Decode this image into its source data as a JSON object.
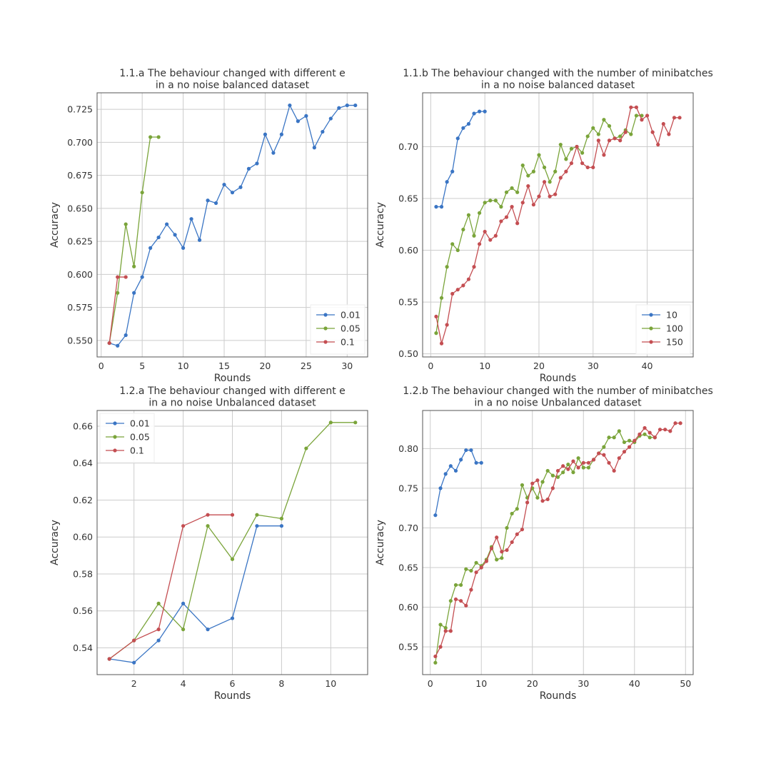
{
  "chart_data": [
    {
      "type": "line",
      "title": "1.1.a The behaviour changed with different e\nin a no noise balanced dataset",
      "xlabel": "Rounds",
      "ylabel": "Accuracy",
      "xlim": [
        -0.5,
        32.5
      ],
      "ylim": [
        0.5375,
        0.7375
      ],
      "xticks": [
        0,
        5,
        10,
        15,
        20,
        25,
        30
      ],
      "yticks": [
        0.55,
        0.575,
        0.6,
        0.625,
        0.65,
        0.675,
        0.7,
        0.725
      ],
      "ytick_labels": [
        "0.550",
        "0.575",
        "0.600",
        "0.625",
        "0.650",
        "0.675",
        "0.700",
        "0.725"
      ],
      "grid": true,
      "legend_position": "lower-right",
      "series": [
        {
          "name": "0.01",
          "color": "#3a75c4",
          "x": [
            1,
            2,
            3,
            4,
            5,
            6,
            7,
            8,
            9,
            10,
            11,
            12,
            13,
            14,
            15,
            16,
            17,
            18,
            19,
            20,
            21,
            22,
            23,
            24,
            25,
            26,
            27,
            28,
            29,
            30,
            31
          ],
          "y": [
            0.548,
            0.546,
            0.554,
            0.586,
            0.598,
            0.62,
            0.628,
            0.638,
            0.63,
            0.62,
            0.642,
            0.626,
            0.656,
            0.654,
            0.668,
            0.662,
            0.666,
            0.68,
            0.684,
            0.706,
            0.692,
            0.706,
            0.728,
            0.716,
            0.72,
            0.696,
            0.708,
            0.718,
            0.726,
            0.728,
            0.728
          ]
        },
        {
          "name": "0.05",
          "color": "#7aa43a",
          "x": [
            1,
            2,
            3,
            4,
            5,
            6,
            7
          ],
          "y": [
            0.548,
            0.586,
            0.638,
            0.606,
            0.662,
            0.704,
            0.704
          ]
        },
        {
          "name": "0.1",
          "color": "#c44e52",
          "x": [
            1,
            2,
            3
          ],
          "y": [
            0.548,
            0.598,
            0.598
          ]
        }
      ]
    },
    {
      "type": "line",
      "title": "1.1.b The behaviour changed with the number of minibatches\nin a no noise balanced dataset",
      "xlabel": "Rounds",
      "ylabel": "Accuracy",
      "xlim": [
        -1.5,
        48.5
      ],
      "ylim": [
        0.497,
        0.752
      ],
      "xticks": [
        0,
        10,
        20,
        30,
        40
      ],
      "yticks": [
        0.5,
        0.55,
        0.6,
        0.65,
        0.7
      ],
      "ytick_labels": [
        "0.50",
        "0.55",
        "0.60",
        "0.65",
        "0.70"
      ],
      "grid": true,
      "legend_position": "lower-right",
      "series": [
        {
          "name": "10",
          "color": "#3a75c4",
          "x": [
            1,
            2,
            3,
            4,
            5,
            6,
            7,
            8,
            9,
            10
          ],
          "y": [
            0.642,
            0.642,
            0.666,
            0.676,
            0.708,
            0.718,
            0.722,
            0.732,
            0.734,
            0.734
          ]
        },
        {
          "name": "100",
          "color": "#7aa43a",
          "x": [
            1,
            2,
            3,
            4,
            5,
            6,
            7,
            8,
            9,
            10,
            11,
            12,
            13,
            14,
            15,
            16,
            17,
            18,
            19,
            20,
            21,
            22,
            23,
            24,
            25,
            26,
            27,
            28,
            29,
            30,
            31,
            32,
            33,
            34,
            35,
            36,
            37,
            38,
            39
          ],
          "y": [
            0.52,
            0.554,
            0.584,
            0.606,
            0.6,
            0.62,
            0.634,
            0.614,
            0.636,
            0.646,
            0.648,
            0.648,
            0.642,
            0.656,
            0.66,
            0.656,
            0.682,
            0.672,
            0.676,
            0.692,
            0.68,
            0.666,
            0.676,
            0.702,
            0.688,
            0.698,
            0.7,
            0.694,
            0.71,
            0.718,
            0.712,
            0.726,
            0.72,
            0.708,
            0.71,
            0.716,
            0.712,
            0.73,
            0.73
          ]
        },
        {
          "name": "150",
          "color": "#c44e52",
          "x": [
            1,
            2,
            3,
            4,
            5,
            6,
            7,
            8,
            9,
            10,
            11,
            12,
            13,
            14,
            15,
            16,
            17,
            18,
            19,
            20,
            21,
            22,
            23,
            24,
            25,
            26,
            27,
            28,
            29,
            30,
            31,
            32,
            33,
            34,
            35,
            36,
            37,
            38,
            39,
            40,
            41,
            42,
            43,
            44,
            45,
            46
          ],
          "y": [
            0.536,
            0.51,
            0.528,
            0.558,
            0.562,
            0.566,
            0.572,
            0.584,
            0.606,
            0.618,
            0.61,
            0.614,
            0.628,
            0.632,
            0.642,
            0.626,
            0.646,
            0.662,
            0.644,
            0.652,
            0.666,
            0.652,
            0.654,
            0.67,
            0.676,
            0.684,
            0.7,
            0.684,
            0.68,
            0.68,
            0.706,
            0.692,
            0.706,
            0.708,
            0.706,
            0.714,
            0.738,
            0.738,
            0.726,
            0.73,
            0.714,
            0.702,
            0.722,
            0.712,
            0.728,
            0.728
          ]
        }
      ]
    },
    {
      "type": "line",
      "title": "1.2.a The behaviour changed with different e\nin a no noise Unbalanced dataset",
      "xlabel": "Rounds",
      "ylabel": "Accuracy",
      "xlim": [
        0.5,
        11.5
      ],
      "ylim": [
        0.5255,
        0.6685
      ],
      "xticks": [
        2,
        4,
        6,
        8,
        10
      ],
      "yticks": [
        0.54,
        0.56,
        0.58,
        0.6,
        0.62,
        0.64,
        0.66
      ],
      "ytick_labels": [
        "0.54",
        "0.56",
        "0.58",
        "0.60",
        "0.62",
        "0.64",
        "0.66"
      ],
      "grid": true,
      "legend_position": "upper-left",
      "series": [
        {
          "name": "0.01",
          "color": "#3a75c4",
          "x": [
            1,
            2,
            3,
            4,
            5,
            6,
            7,
            8
          ],
          "y": [
            0.534,
            0.532,
            0.544,
            0.564,
            0.55,
            0.556,
            0.606,
            0.606
          ]
        },
        {
          "name": "0.05",
          "color": "#7aa43a",
          "x": [
            1,
            2,
            3,
            4,
            5,
            6,
            7,
            8,
            9,
            10,
            11
          ],
          "y": [
            0.534,
            0.544,
            0.564,
            0.55,
            0.606,
            0.588,
            0.612,
            0.61,
            0.648,
            0.662,
            0.662
          ]
        },
        {
          "name": "0.1",
          "color": "#c44e52",
          "x": [
            1,
            2,
            3,
            4,
            5,
            6
          ],
          "y": [
            0.534,
            0.544,
            0.55,
            0.606,
            0.612,
            0.612
          ]
        }
      ]
    },
    {
      "type": "line",
      "title": "1.2.b The behaviour changed with the number of minibatches\nin a no noise Unbalanced dataset",
      "xlabel": "Rounds",
      "ylabel": "Accuracy",
      "xlim": [
        -1.5,
        51.5
      ],
      "ylim": [
        0.515,
        0.848
      ],
      "xticks": [
        0,
        10,
        20,
        30,
        40,
        50
      ],
      "yticks": [
        0.55,
        0.6,
        0.65,
        0.7,
        0.75,
        0.8
      ],
      "ytick_labels": [
        "0.55",
        "0.60",
        "0.65",
        "0.70",
        "0.75",
        "0.80"
      ],
      "grid": true,
      "legend_position": "none",
      "series": [
        {
          "name": "",
          "color": "#3a75c4",
          "x": [
            1,
            2,
            3,
            4,
            5,
            6,
            7,
            8,
            9,
            10
          ],
          "y": [
            0.716,
            0.75,
            0.768,
            0.778,
            0.772,
            0.786,
            0.798,
            0.798,
            0.782,
            0.782
          ]
        },
        {
          "name": "",
          "color": "#7aa43a",
          "x": [
            1,
            2,
            3,
            4,
            5,
            6,
            7,
            8,
            9,
            10,
            11,
            12,
            13,
            14,
            15,
            16,
            17,
            18,
            19,
            20,
            21,
            22,
            23,
            24,
            25,
            26,
            27,
            28,
            29,
            30,
            31,
            32,
            33,
            34,
            35,
            36,
            37,
            38,
            39,
            40,
            41,
            42,
            43,
            44
          ],
          "y": [
            0.53,
            0.578,
            0.574,
            0.608,
            0.628,
            0.628,
            0.648,
            0.646,
            0.656,
            0.652,
            0.66,
            0.676,
            0.66,
            0.662,
            0.7,
            0.718,
            0.724,
            0.754,
            0.738,
            0.75,
            0.738,
            0.758,
            0.772,
            0.766,
            0.764,
            0.77,
            0.78,
            0.77,
            0.788,
            0.776,
            0.776,
            0.786,
            0.794,
            0.802,
            0.814,
            0.814,
            0.822,
            0.808,
            0.81,
            0.808,
            0.816,
            0.818,
            0.814,
            0.814
          ]
        },
        {
          "name": "",
          "color": "#c44e52",
          "x": [
            1,
            2,
            3,
            4,
            5,
            6,
            7,
            8,
            9,
            10,
            11,
            12,
            13,
            14,
            15,
            16,
            17,
            18,
            19,
            20,
            21,
            22,
            23,
            24,
            25,
            26,
            27,
            28,
            29,
            30,
            31,
            32,
            33,
            34,
            35,
            36,
            37,
            38,
            39,
            40,
            41,
            42,
            43,
            44,
            45,
            46,
            47,
            48,
            49
          ],
          "y": [
            0.538,
            0.55,
            0.57,
            0.57,
            0.61,
            0.608,
            0.602,
            0.622,
            0.644,
            0.65,
            0.658,
            0.674,
            0.688,
            0.67,
            0.672,
            0.682,
            0.692,
            0.698,
            0.732,
            0.756,
            0.76,
            0.734,
            0.736,
            0.75,
            0.772,
            0.778,
            0.774,
            0.784,
            0.776,
            0.782,
            0.782,
            0.786,
            0.794,
            0.792,
            0.782,
            0.772,
            0.788,
            0.796,
            0.802,
            0.81,
            0.818,
            0.826,
            0.82,
            0.814,
            0.824,
            0.824,
            0.822,
            0.832,
            0.832
          ]
        }
      ]
    }
  ]
}
